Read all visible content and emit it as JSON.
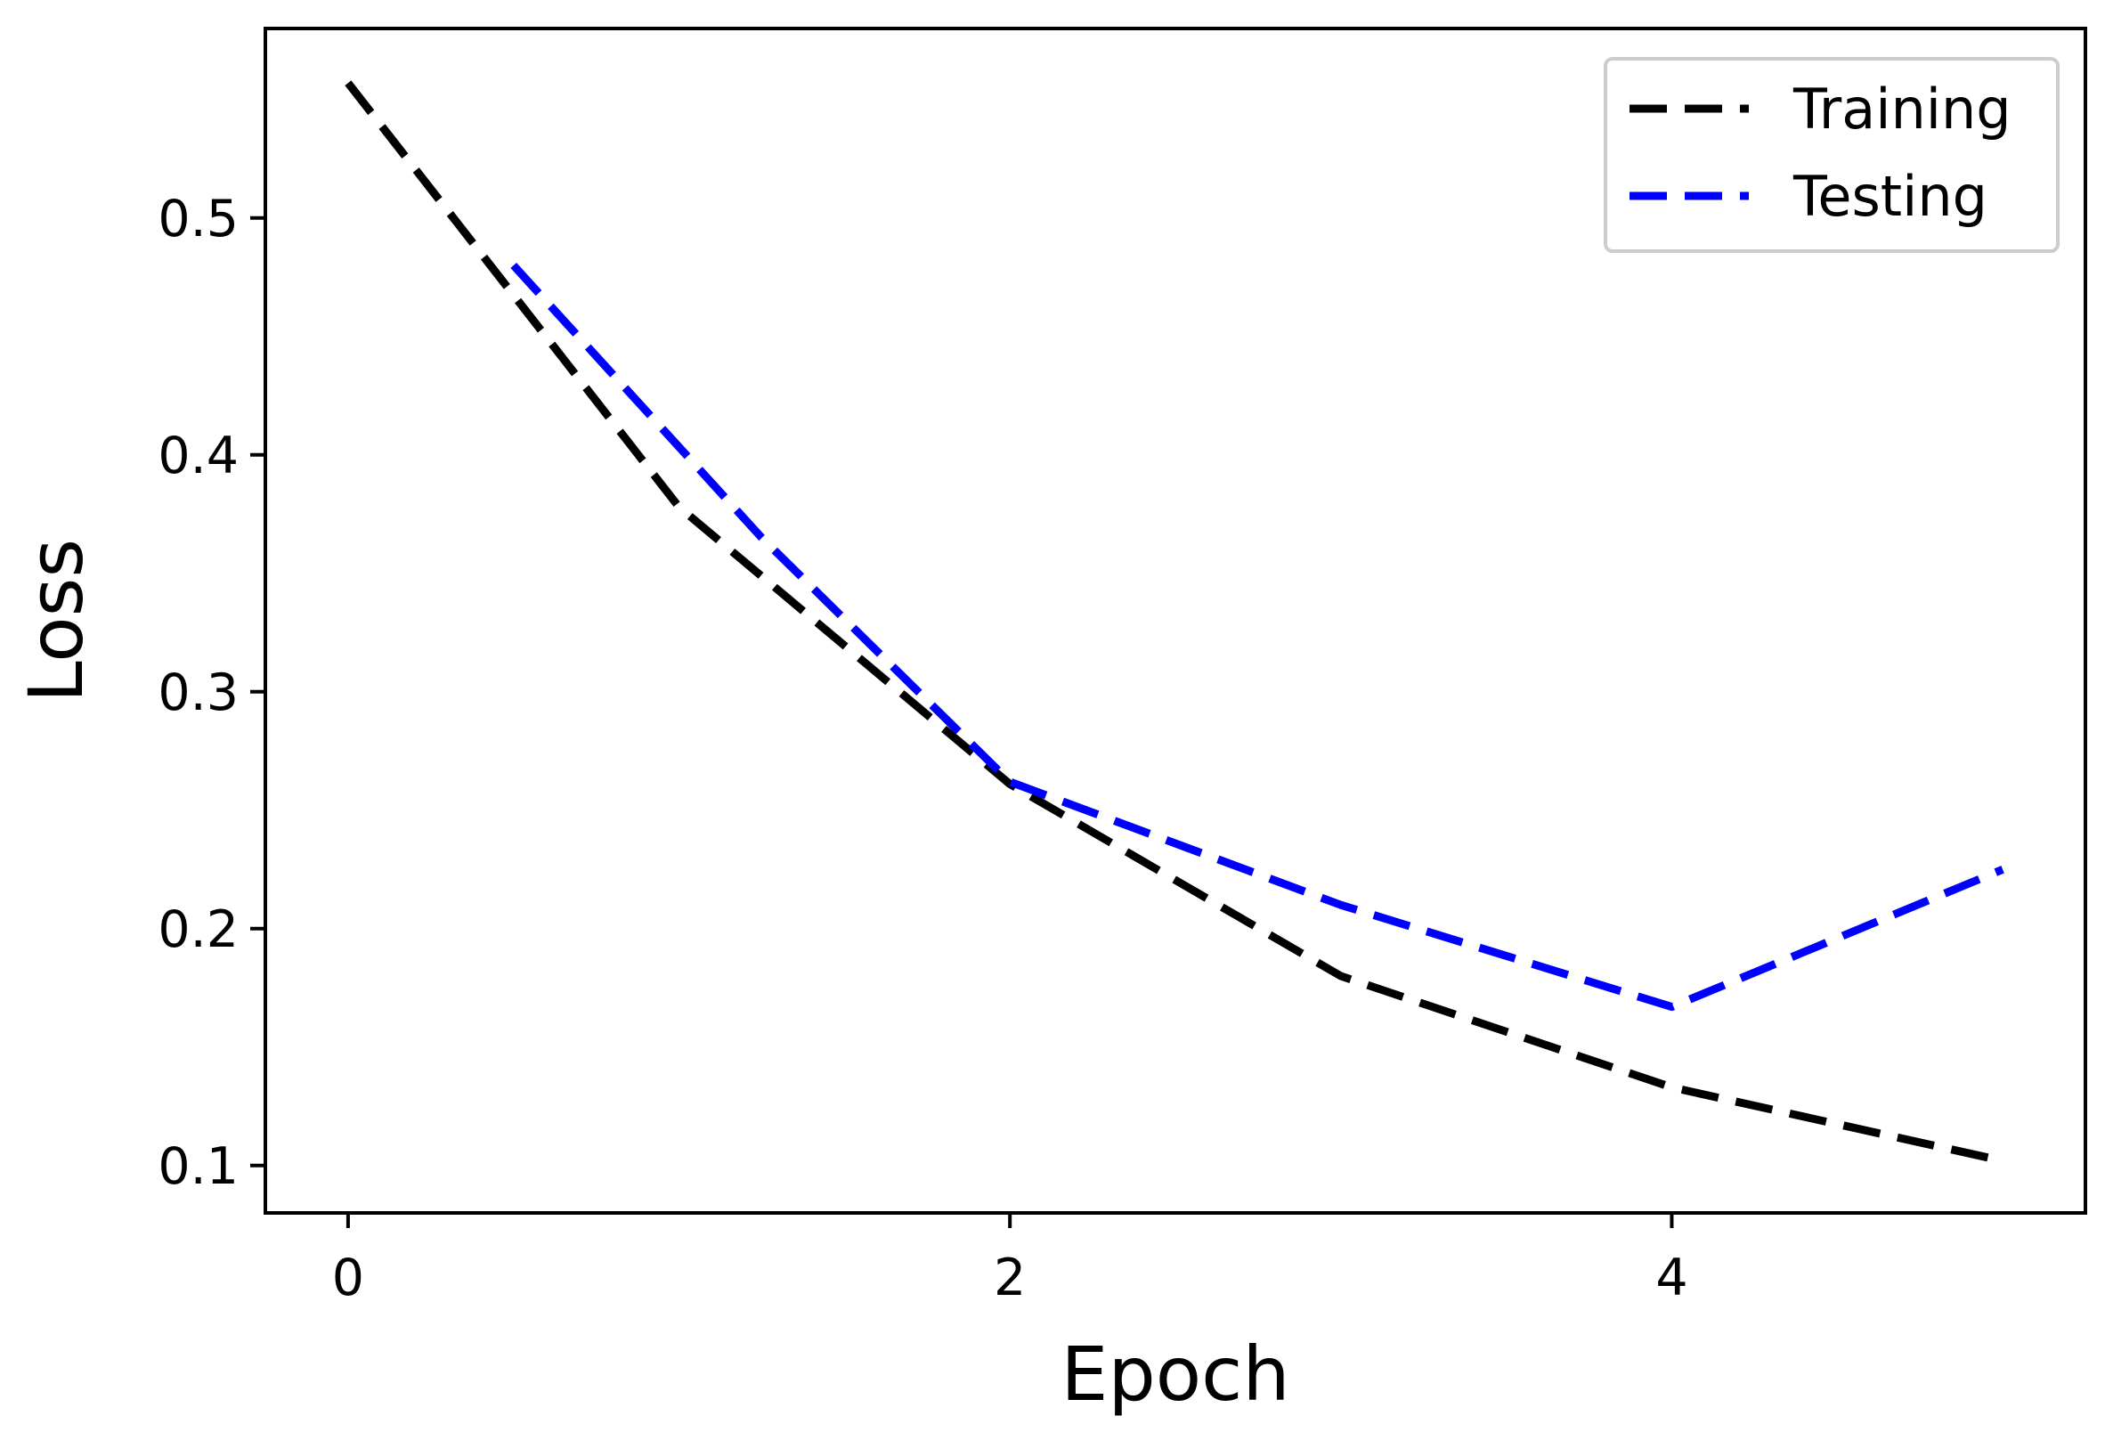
{
  "chart_data": {
    "type": "line",
    "title": "",
    "xlabel": "Epoch",
    "ylabel": "Loss",
    "xlim": [
      -0.25,
      5.25
    ],
    "ylim": [
      0.08,
      0.58
    ],
    "xticks": [
      0,
      2,
      4
    ],
    "xtick_labels": [
      "0",
      "2",
      "4"
    ],
    "yticks": [
      0.1,
      0.2,
      0.3,
      0.4,
      0.5
    ],
    "ytick_labels": [
      "0.1",
      "0.2",
      "0.3",
      "0.4",
      "0.5"
    ],
    "grid": false,
    "legend_position": "top-right",
    "series": [
      {
        "name": "Training",
        "color": "#000000",
        "line_style": "dashed",
        "x": [
          0,
          1,
          2,
          3,
          4,
          5
        ],
        "y": [
          0.557,
          0.378,
          0.261,
          0.18,
          0.133,
          0.102
        ]
      },
      {
        "name": "Testing",
        "color": "#0000ff",
        "line_style": "dashed",
        "x": [
          0.5,
          1.25,
          2,
          3,
          4,
          5
        ],
        "y": [
          0.48,
          0.365,
          0.262,
          0.21,
          0.167,
          0.225
        ]
      }
    ]
  }
}
